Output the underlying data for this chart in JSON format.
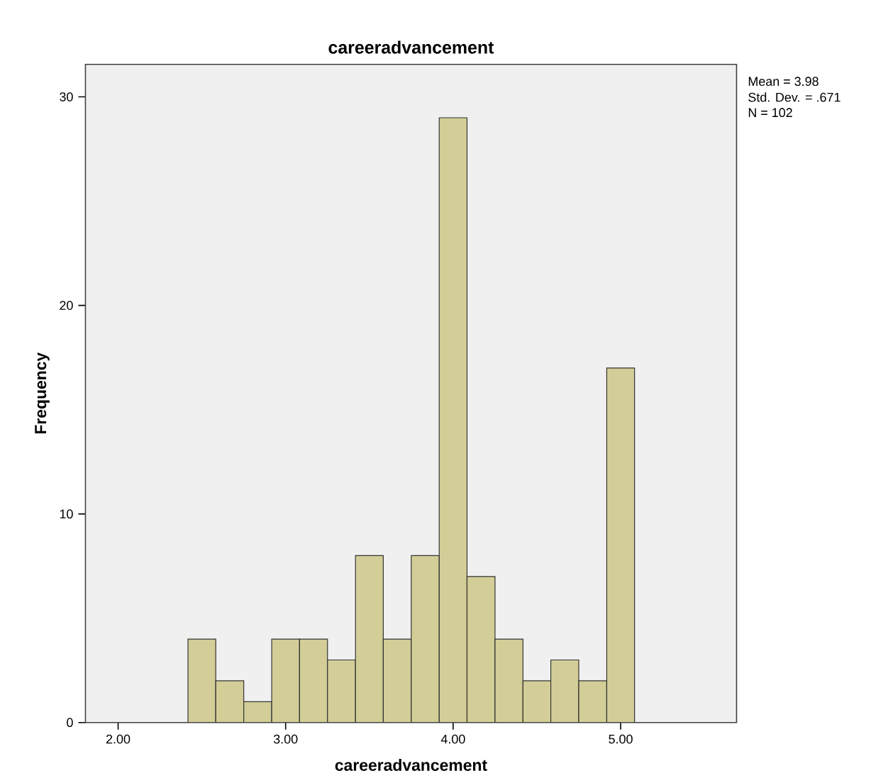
{
  "chart_data": {
    "type": "histogram",
    "title": "careeradvancement",
    "xlabel": "careeradvancement",
    "ylabel": "Frequency",
    "bins": [
      2.417,
      2.583,
      2.75,
      2.917,
      3.083,
      3.25,
      3.417,
      3.583,
      3.75,
      3.917,
      4.083,
      4.25,
      4.417,
      4.583,
      4.75,
      4.917,
      5.083
    ],
    "values": [
      4,
      2,
      1,
      4,
      4,
      3,
      8,
      4,
      8,
      29,
      7,
      4,
      2,
      3,
      2,
      17
    ],
    "color": "#d3ce97",
    "xlim": [
      1.805,
      5.692
    ],
    "ylim": [
      0,
      31.56
    ],
    "xticks": [
      {
        "value": 2,
        "label": "2.00"
      },
      {
        "value": 3,
        "label": "3.00"
      },
      {
        "value": 4,
        "label": "4.00"
      },
      {
        "value": 5,
        "label": "5.00"
      }
    ],
    "yticks": [
      0,
      10,
      20,
      30
    ],
    "grid": false,
    "annotations": [
      "Mean = 3.98",
      "Std. Dev. = .671",
      "N = 102"
    ]
  }
}
